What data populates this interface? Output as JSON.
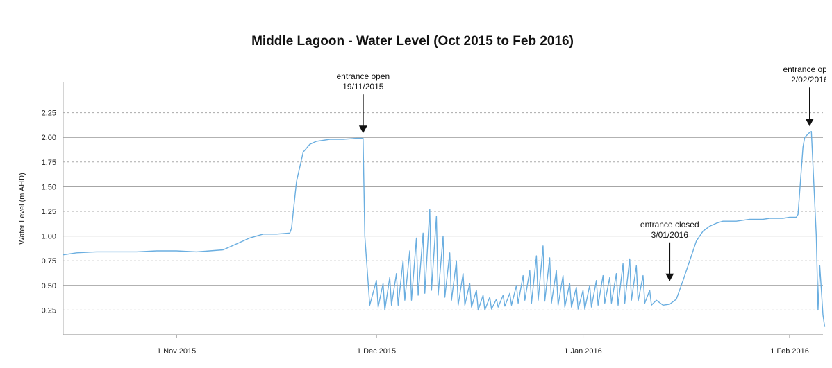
{
  "chart_data": {
    "type": "line",
    "title": "Middle Lagoon - Water Level (Oct 2015 to Feb 2016)",
    "xlabel": "",
    "ylabel": "Water Level (m AHD)",
    "xlim": [
      "2015-10-15",
      "2016-02-06"
    ],
    "ylim": [
      0.0,
      2.5
    ],
    "yticks": [
      0.25,
      0.5,
      0.75,
      1.0,
      1.25,
      1.5,
      1.75,
      2.0,
      2.25
    ],
    "ytick_labels": [
      "0.25",
      "0.50",
      "0.75",
      "1.00",
      "1.25",
      "1.50",
      "1.75",
      "2.00",
      "2.25"
    ],
    "xticks": [
      "2015-11-01",
      "2015-12-01",
      "2016-01-01",
      "2016-02-01"
    ],
    "xtick_labels": [
      "1 Nov 2015",
      "1 Dec 2015",
      "1 Jan 2016",
      "1 Feb 2016"
    ],
    "grid": "horizontal, solid at 0.50 intervals and dashed in between",
    "line_color": "#6aaee0",
    "series": [
      {
        "values": [
          [
            "2015-10-15",
            0.81
          ],
          [
            "2015-10-17",
            0.83
          ],
          [
            "2015-10-20",
            0.84
          ],
          [
            "2015-10-23",
            0.84
          ],
          [
            "2015-10-26",
            0.84
          ],
          [
            "2015-10-29",
            0.85
          ],
          [
            "2015-11-01",
            0.85
          ],
          [
            "2015-11-04",
            0.84
          ],
          [
            "2015-11-06",
            0.85
          ],
          [
            "2015-11-08",
            0.86
          ],
          [
            "2015-11-10",
            0.92
          ],
          [
            "2015-11-12",
            0.98
          ],
          [
            "2015-11-14",
            1.02
          ],
          [
            "2015-11-16",
            1.02
          ],
          [
            "2015-11-18",
            1.03
          ],
          [
            "2015-11-18",
            1.08
          ],
          [
            "2015-11-19",
            1.55
          ],
          [
            "2015-11-20",
            1.85
          ],
          [
            "2015-11-21",
            1.93
          ],
          [
            "2015-11-22",
            1.96
          ],
          [
            "2015-11-24",
            1.98
          ],
          [
            "2015-11-26",
            1.98
          ],
          [
            "2015-11-28",
            1.99
          ],
          [
            "2015-11-29",
            1.99
          ],
          [
            "2015-11-29",
            1.0
          ],
          [
            "2015-11-30",
            0.3
          ],
          [
            "2015-12-01",
            0.55
          ],
          [
            "2015-12-01",
            0.28
          ],
          [
            "2015-12-02",
            0.52
          ],
          [
            "2015-12-02",
            0.25
          ],
          [
            "2015-12-03",
            0.58
          ],
          [
            "2015-12-03",
            0.3
          ],
          [
            "2015-12-04",
            0.62
          ],
          [
            "2015-12-04",
            0.3
          ],
          [
            "2015-12-05",
            0.75
          ],
          [
            "2015-12-05",
            0.35
          ],
          [
            "2015-12-06",
            0.85
          ],
          [
            "2015-12-06",
            0.35
          ],
          [
            "2015-12-07",
            0.98
          ],
          [
            "2015-12-07",
            0.4
          ],
          [
            "2015-12-08",
            1.03
          ],
          [
            "2015-12-08",
            0.42
          ],
          [
            "2015-12-09",
            1.27
          ],
          [
            "2015-12-09",
            0.45
          ],
          [
            "2015-12-10",
            1.2
          ],
          [
            "2015-12-10",
            0.4
          ],
          [
            "2015-12-11",
            1.0
          ],
          [
            "2015-12-11",
            0.38
          ],
          [
            "2015-12-12",
            0.83
          ],
          [
            "2015-12-12",
            0.35
          ],
          [
            "2015-12-13",
            0.75
          ],
          [
            "2015-12-13",
            0.3
          ],
          [
            "2015-12-14",
            0.62
          ],
          [
            "2015-12-14",
            0.3
          ],
          [
            "2015-12-15",
            0.52
          ],
          [
            "2015-12-15",
            0.28
          ],
          [
            "2015-12-16",
            0.45
          ],
          [
            "2015-12-16",
            0.25
          ],
          [
            "2015-12-17",
            0.4
          ],
          [
            "2015-12-17",
            0.25
          ],
          [
            "2015-12-18",
            0.38
          ],
          [
            "2015-12-18",
            0.26
          ],
          [
            "2015-12-19",
            0.36
          ],
          [
            "2015-12-19",
            0.28
          ],
          [
            "2015-12-20",
            0.4
          ],
          [
            "2015-12-20",
            0.29
          ],
          [
            "2015-12-21",
            0.42
          ],
          [
            "2015-12-21",
            0.3
          ],
          [
            "2015-12-22",
            0.5
          ],
          [
            "2015-12-22",
            0.32
          ],
          [
            "2015-12-23",
            0.6
          ],
          [
            "2015-12-23",
            0.35
          ],
          [
            "2015-12-24",
            0.65
          ],
          [
            "2015-12-24",
            0.32
          ],
          [
            "2015-12-25",
            0.8
          ],
          [
            "2015-12-25",
            0.35
          ],
          [
            "2015-12-26",
            0.9
          ],
          [
            "2015-12-26",
            0.34
          ],
          [
            "2015-12-27",
            0.78
          ],
          [
            "2015-12-27",
            0.32
          ],
          [
            "2015-12-28",
            0.65
          ],
          [
            "2015-12-28",
            0.3
          ],
          [
            "2015-12-29",
            0.6
          ],
          [
            "2015-12-29",
            0.28
          ],
          [
            "2015-12-30",
            0.52
          ],
          [
            "2015-12-30",
            0.28
          ],
          [
            "2015-12-31",
            0.48
          ],
          [
            "2015-12-31",
            0.26
          ],
          [
            "2016-01-01",
            0.45
          ],
          [
            "2016-01-01",
            0.26
          ],
          [
            "2016-01-02",
            0.5
          ],
          [
            "2016-01-02",
            0.28
          ],
          [
            "2016-01-03",
            0.55
          ],
          [
            "2016-01-03",
            0.3
          ],
          [
            "2016-01-04",
            0.6
          ],
          [
            "2016-01-04",
            0.32
          ],
          [
            "2016-01-05",
            0.58
          ],
          [
            "2016-01-05",
            0.32
          ],
          [
            "2016-01-06",
            0.62
          ],
          [
            "2016-01-06",
            0.3
          ],
          [
            "2016-01-07",
            0.72
          ],
          [
            "2016-01-07",
            0.32
          ],
          [
            "2016-01-08",
            0.77
          ],
          [
            "2016-01-08",
            0.35
          ],
          [
            "2016-01-09",
            0.7
          ],
          [
            "2016-01-09",
            0.34
          ],
          [
            "2016-01-10",
            0.6
          ],
          [
            "2016-01-10",
            0.32
          ],
          [
            "2016-01-11",
            0.45
          ],
          [
            "2016-01-11",
            0.3
          ],
          [
            "2016-01-12",
            0.35
          ],
          [
            "2016-01-13",
            0.3
          ],
          [
            "2016-01-14",
            0.31
          ],
          [
            "2016-01-15",
            0.36
          ],
          [
            "2016-01-16",
            0.55
          ],
          [
            "2016-01-17",
            0.75
          ],
          [
            "2016-01-18",
            0.95
          ],
          [
            "2016-01-19",
            1.05
          ],
          [
            "2016-01-20",
            1.1
          ],
          [
            "2016-01-21",
            1.13
          ],
          [
            "2016-01-22",
            1.15
          ],
          [
            "2016-01-23",
            1.15
          ],
          [
            "2016-01-24",
            1.15
          ],
          [
            "2016-01-25",
            1.16
          ],
          [
            "2016-01-26",
            1.17
          ],
          [
            "2016-01-27",
            1.17
          ],
          [
            "2016-01-28",
            1.17
          ],
          [
            "2016-01-29",
            1.18
          ],
          [
            "2016-01-30",
            1.18
          ],
          [
            "2016-01-31",
            1.18
          ],
          [
            "2016-02-01",
            1.19
          ],
          [
            "2016-02-02",
            1.19
          ],
          [
            "2016-02-02",
            1.22
          ],
          [
            "2016-02-03",
            1.9
          ],
          [
            "2016-02-03",
            2.0
          ],
          [
            "2016-02-04",
            2.05
          ],
          [
            "2016-02-04",
            2.06
          ],
          [
            "2016-02-05",
            1.0
          ],
          [
            "2016-02-05",
            0.25
          ],
          [
            "2016-02-05",
            0.7
          ],
          [
            "2016-02-06",
            0.2
          ],
          [
            "2016-02-06",
            0.08
          ]
        ]
      }
    ],
    "annotations": [
      {
        "line1": "entrance open",
        "line2": "19/11/2015",
        "x": "2015-11-29",
        "y": 2.0
      },
      {
        "line1": "entrance closed",
        "line2": "3/01/2016",
        "x": "2016-01-14",
        "y": 0.5
      },
      {
        "line1": "entrance open",
        "line2": "2/02/2016",
        "x": "2016-02-04",
        "y": 2.07
      }
    ]
  }
}
